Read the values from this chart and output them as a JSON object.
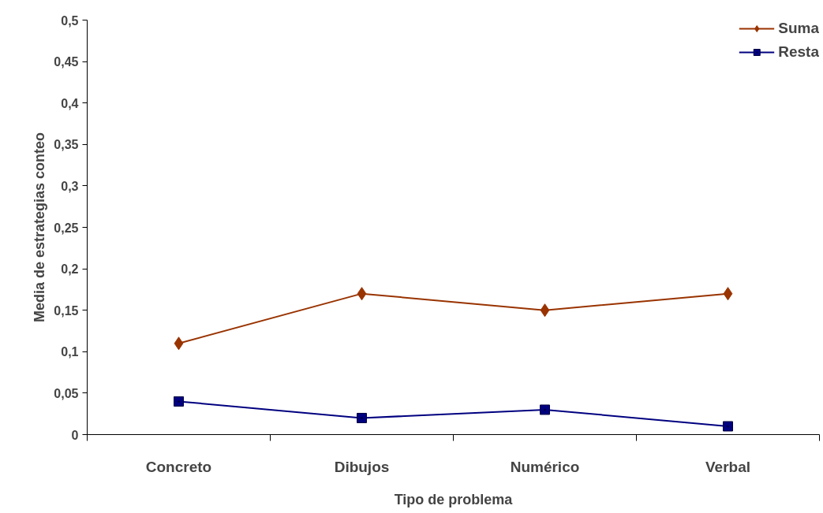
{
  "chart_data": {
    "type": "line",
    "xlabel": "Tipo de problema",
    "ylabel": "Media de estrategias conteo",
    "categories": [
      "Concreto",
      "Dibujos",
      "Numérico",
      "Verbal"
    ],
    "series": [
      {
        "name": "Suma",
        "color": "#993300",
        "marker": "diamond",
        "values": [
          0.11,
          0.17,
          0.15,
          0.17
        ]
      },
      {
        "name": "Resta",
        "color": "#000080",
        "marker": "square",
        "values": [
          0.04,
          0.02,
          0.03,
          0.01
        ]
      }
    ],
    "ylim": [
      0,
      0.5
    ],
    "yticks": [
      0,
      {
        "value": 0.05,
        "label": "0,05"
      },
      {
        "value": 0.1,
        "label": "0,1"
      },
      {
        "value": 0.15,
        "label": "0,15"
      },
      {
        "value": 0.2,
        "label": "0,2"
      },
      {
        "value": 0.25,
        "label": "0,25"
      },
      {
        "value": 0.3,
        "label": "0,3"
      },
      {
        "value": 0.35,
        "label": "0,35"
      },
      {
        "value": 0.4,
        "label": "0,4"
      },
      {
        "value": 0.45,
        "label": "0,45"
      },
      {
        "value": 0.5,
        "label": "0,5"
      }
    ],
    "grid": false,
    "legend": "top right",
    "line_style": "solid"
  }
}
